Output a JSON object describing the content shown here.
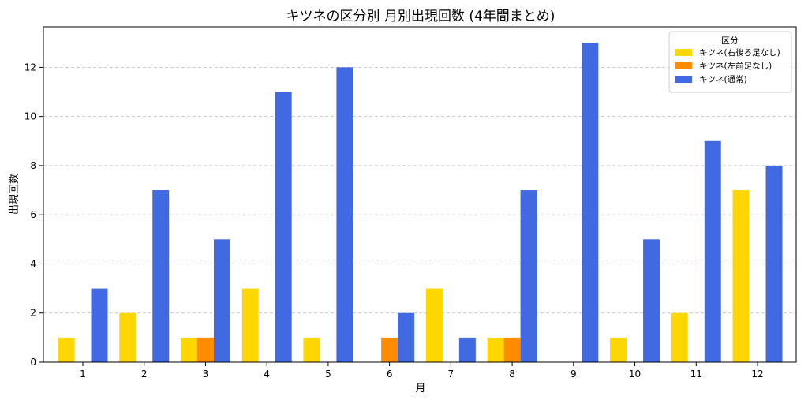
{
  "chart_data": {
    "type": "bar",
    "title": "キツネの区分別 月別出現回数 (4年間まとめ)",
    "xlabel": "月",
    "ylabel": "出現回数",
    "categories": [
      "1",
      "2",
      "3",
      "4",
      "5",
      "6",
      "7",
      "8",
      "9",
      "10",
      "11",
      "12"
    ],
    "ylim": [
      0,
      13.65
    ],
    "yticks": [
      0,
      2,
      4,
      6,
      8,
      10,
      12
    ],
    "grid": "y-dashed",
    "legend": {
      "title": "区分",
      "placement": "top-right"
    },
    "series": [
      {
        "name": "キツネ(右後ろ足なし)",
        "color": "#FFD700",
        "values": [
          1,
          2,
          1,
          3,
          1,
          0,
          3,
          1,
          0,
          1,
          2,
          7
        ]
      },
      {
        "name": "キツネ(左前足なし)",
        "color": "#FF8C00",
        "values": [
          0,
          0,
          1,
          0,
          0,
          1,
          0,
          1,
          0,
          0,
          0,
          0
        ]
      },
      {
        "name": "キツネ(通常)",
        "color": "#4169E1",
        "values": [
          3,
          7,
          5,
          11,
          12,
          2,
          1,
          7,
          13,
          5,
          9,
          8
        ]
      }
    ]
  }
}
